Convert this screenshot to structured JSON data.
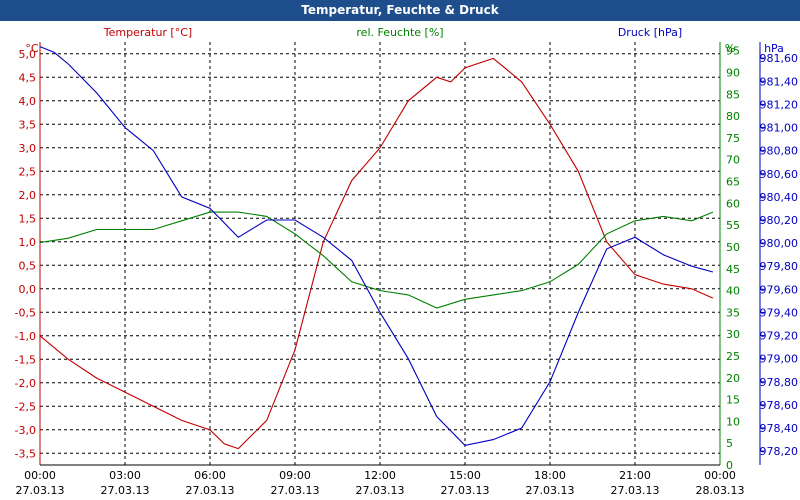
{
  "window": {
    "title": "Temperatur, Feuchte & Druck"
  },
  "colors": {
    "temperature": "#c00000",
    "humidity": "#008000",
    "pressure": "#0000c0",
    "title_bar": "#1f4e8c",
    "text": "#000000"
  },
  "chart_data": {
    "type": "line",
    "title": "Temperatur, Feuchte & Druck",
    "axes": {
      "temperature": {
        "label": "Temperatur [°C]",
        "unit": "°C",
        "ylim": [
          -3.75,
          5.25
        ],
        "ticks": [
          "5,0",
          "4,5",
          "4,0",
          "3,5",
          "3,0",
          "2,5",
          "2,0",
          "1,5",
          "1,0",
          "0,5",
          "0,0",
          "-0,5",
          "-1,0",
          "-1,5",
          "-2,0",
          "-2,5",
          "-3,0",
          "-3,5"
        ]
      },
      "humidity": {
        "label": "rel. Feuchte [%]",
        "unit": "%",
        "ylim": [
          0,
          97
        ],
        "ticks": [
          "95",
          "90",
          "85",
          "80",
          "75",
          "70",
          "65",
          "60",
          "55",
          "50",
          "45",
          "40",
          "35",
          "30",
          "25",
          "20",
          "15",
          "10",
          "5",
          "0"
        ]
      },
      "pressure": {
        "label": "Druck [hPa]",
        "unit": "hPa",
        "ylim": [
          978.08,
          981.74
        ],
        "ticks": [
          "981,60",
          "981,40",
          "981,20",
          "981,00",
          "980,80",
          "980,60",
          "980,40",
          "980,20",
          "980,00",
          "979,80",
          "979,60",
          "979,40",
          "979,20",
          "979,00",
          "978,80",
          "978,60",
          "978,40",
          "978,20"
        ]
      }
    },
    "x_ticks": [
      {
        "time": "00:00",
        "date": "27.03.13"
      },
      {
        "time": "03:00",
        "date": "27.03.13"
      },
      {
        "time": "06:00",
        "date": "27.03.13"
      },
      {
        "time": "09:00",
        "date": "27.03.13"
      },
      {
        "time": "12:00",
        "date": "27.03.13"
      },
      {
        "time": "15:00",
        "date": "27.03.13"
      },
      {
        "time": "18:00",
        "date": "27.03.13"
      },
      {
        "time": "21:00",
        "date": "27.03.13"
      },
      {
        "time": "00:00",
        "date": "28.03.13"
      }
    ],
    "grid": true,
    "series": [
      {
        "name": "Temperatur [°C]",
        "axis": "temperature",
        "color": "#c00000",
        "x": [
          "27.03.13 00:00",
          "27.03.13 01:00",
          "27.03.13 02:00",
          "27.03.13 03:00",
          "27.03.13 04:00",
          "27.03.13 05:00",
          "27.03.13 06:00",
          "27.03.13 06:30",
          "27.03.13 07:00",
          "27.03.13 08:00",
          "27.03.13 09:00",
          "27.03.13 10:00",
          "27.03.13 11:00",
          "27.03.13 12:00",
          "27.03.13 13:00",
          "27.03.13 14:00",
          "27.03.13 14:30",
          "27.03.13 15:00",
          "27.03.13 16:00",
          "27.03.13 17:00",
          "27.03.13 18:00",
          "27.03.13 19:00",
          "27.03.13 20:00",
          "27.03.13 21:00",
          "27.03.13 22:00",
          "27.03.13 23:00",
          "27.03.13 23:45"
        ],
        "values": [
          -1.0,
          -1.5,
          -1.9,
          -2.2,
          -2.5,
          -2.8,
          -3.0,
          -3.3,
          -3.4,
          -2.8,
          -1.3,
          1.0,
          2.3,
          3.0,
          4.0,
          4.5,
          4.4,
          4.7,
          4.9,
          4.4,
          3.5,
          2.5,
          1.0,
          0.3,
          0.1,
          0.0,
          -0.2
        ]
      },
      {
        "name": "rel. Feuchte [%]",
        "axis": "humidity",
        "color": "#008000",
        "x": [
          "27.03.13 00:00",
          "27.03.13 01:00",
          "27.03.13 02:00",
          "27.03.13 03:00",
          "27.03.13 04:00",
          "27.03.13 05:00",
          "27.03.13 06:00",
          "27.03.13 07:00",
          "27.03.13 08:00",
          "27.03.13 09:00",
          "27.03.13 10:00",
          "27.03.13 11:00",
          "27.03.13 12:00",
          "27.03.13 13:00",
          "27.03.13 14:00",
          "27.03.13 15:00",
          "27.03.13 16:00",
          "27.03.13 17:00",
          "27.03.13 18:00",
          "27.03.13 19:00",
          "27.03.13 20:00",
          "27.03.13 21:00",
          "27.03.13 22:00",
          "27.03.13 23:00",
          "27.03.13 23:45"
        ],
        "values": [
          51,
          52,
          54,
          54,
          54,
          56,
          58,
          58,
          57,
          53,
          48,
          42,
          40,
          39,
          36,
          38,
          39,
          40,
          42,
          46,
          53,
          56,
          57,
          56,
          58
        ]
      },
      {
        "name": "Druck [hPa]",
        "axis": "pressure",
        "color": "#0000c0",
        "x": [
          "27.03.13 00:00",
          "27.03.13 00:30",
          "27.03.13 01:00",
          "27.03.13 02:00",
          "27.03.13 03:00",
          "27.03.13 04:00",
          "27.03.13 05:00",
          "27.03.13 06:00",
          "27.03.13 07:00",
          "27.03.13 08:00",
          "27.03.13 09:00",
          "27.03.13 10:00",
          "27.03.13 11:00",
          "27.03.13 12:00",
          "27.03.13 13:00",
          "27.03.13 14:00",
          "27.03.13 15:00",
          "27.03.13 16:00",
          "27.03.13 17:00",
          "27.03.13 18:00",
          "27.03.13 19:00",
          "27.03.13 20:00",
          "27.03.13 21:00",
          "27.03.13 22:00",
          "27.03.13 23:00",
          "27.03.13 23:45"
        ],
        "values": [
          981.7,
          981.65,
          981.55,
          981.3,
          981.0,
          980.8,
          980.4,
          980.3,
          980.05,
          980.2,
          980.2,
          980.05,
          979.85,
          979.4,
          979.0,
          978.5,
          978.25,
          978.3,
          978.4,
          978.8,
          979.4,
          979.95,
          980.05,
          979.9,
          979.8,
          979.75
        ]
      }
    ]
  }
}
